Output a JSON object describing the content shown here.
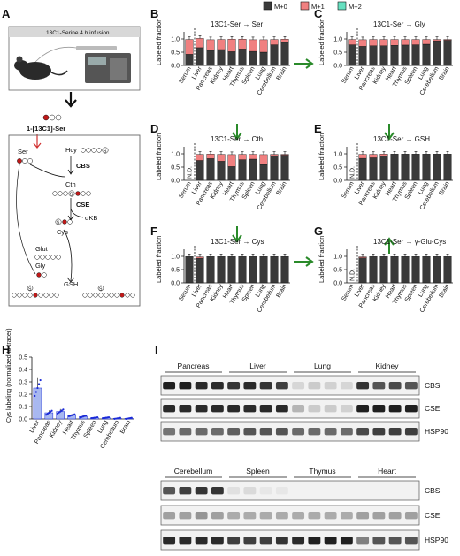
{
  "figure": {
    "panel_labels": [
      "A",
      "B",
      "C",
      "D",
      "E",
      "F",
      "G",
      "H",
      "I"
    ],
    "legend": [
      {
        "label": "M+0",
        "color": "#3a3a3a"
      },
      {
        "label": "M+1",
        "color": "#f08080"
      },
      {
        "label": "M+2",
        "color": "#66e0c0"
      }
    ],
    "colors": {
      "m0": "#3a3a3a",
      "m1": "#f08080",
      "m2": "#66e0c0",
      "arrow_green": "#2a8a2a",
      "arrow_red": "#d03030",
      "enzyme_blue": "#1a2a9a",
      "box_border": "#666666",
      "h_bar": "#a8b8f0",
      "h_point": "#1a2ad8"
    }
  },
  "panelA": {
    "infusion_label": "13C1-Serine 4 h infusion",
    "tracer_label": "1-[13C1]-Ser",
    "metabolites": {
      "ser": "Ser",
      "hcy": "Hcy",
      "cth": "Cth",
      "cys": "Cys",
      "akb": "αKB",
      "glut": "Glut",
      "gly": "Gly",
      "gsh": "GSH"
    },
    "enzymes": {
      "cbs": "CBS",
      "cse": "CSE"
    },
    "s_glyph": "S"
  },
  "chart_data": [
    {
      "panel": "B",
      "type": "bar",
      "stacked": true,
      "title": "13C1-Ser → Ser",
      "ylabel": "Labeled fraction",
      "ylim": [
        0,
        1.0
      ],
      "yticks": [
        0,
        0.5,
        1.0
      ],
      "categories": [
        "Serum",
        "Liver",
        "Pancreas",
        "Kidney",
        "Heart",
        "Thymus",
        "Spleen",
        "Lung",
        "Cerebellum",
        "Brain"
      ],
      "series": [
        {
          "name": "M+0",
          "values": [
            0.42,
            0.67,
            0.57,
            0.6,
            0.52,
            0.62,
            0.53,
            0.5,
            0.78,
            0.87
          ]
        },
        {
          "name": "M+1",
          "values": [
            0.56,
            0.35,
            0.4,
            0.38,
            0.47,
            0.37,
            0.44,
            0.47,
            0.2,
            0.12
          ]
        },
        {
          "name": "M+2",
          "values": [
            0,
            0,
            0,
            0,
            0,
            0,
            0,
            0,
            0,
            0
          ]
        }
      ],
      "not_detected": []
    },
    {
      "panel": "C",
      "type": "bar",
      "stacked": true,
      "title": "13C1-Ser → Gly",
      "ylabel": "Labeled fraction",
      "ylim": [
        0,
        1.0
      ],
      "yticks": [
        0,
        0.5,
        1.0
      ],
      "categories": [
        "Serum",
        "Liver",
        "Pancreas",
        "Kidney",
        "Heart",
        "Thymus",
        "Spleen",
        "Lung",
        "Cerebellum",
        "Brain"
      ],
      "series": [
        {
          "name": "M+0",
          "values": [
            0.78,
            0.72,
            0.74,
            0.74,
            0.76,
            0.77,
            0.78,
            0.8,
            0.93,
            0.95
          ]
        },
        {
          "name": "M+1",
          "values": [
            0.2,
            0.25,
            0.24,
            0.24,
            0.22,
            0.21,
            0.2,
            0.18,
            0.05,
            0.03
          ]
        },
        {
          "name": "M+2",
          "values": [
            0,
            0,
            0,
            0,
            0,
            0,
            0,
            0,
            0,
            0
          ]
        }
      ],
      "not_detected": []
    },
    {
      "panel": "D",
      "type": "bar",
      "stacked": true,
      "title": "13C1-Ser → Cth",
      "ylabel": "Labeled fraction",
      "ylim": [
        0,
        1.0
      ],
      "yticks": [
        0,
        0.5,
        1.0
      ],
      "categories": [
        "Serum",
        "Liver",
        "Pancreas",
        "Kidney",
        "Heart",
        "Thymus",
        "Spleen",
        "Lung",
        "Cerebellum",
        "Brain"
      ],
      "series": [
        {
          "name": "M+0",
          "values": [
            0,
            0.75,
            0.82,
            0.72,
            0.52,
            0.78,
            0.8,
            0.6,
            0.93,
            0.95
          ]
        },
        {
          "name": "M+1",
          "values": [
            0,
            0.23,
            0.17,
            0.26,
            0.45,
            0.2,
            0.18,
            0.37,
            0.05,
            0.03
          ]
        },
        {
          "name": "M+2",
          "values": [
            0,
            0,
            0,
            0,
            0,
            0,
            0,
            0,
            0,
            0
          ]
        }
      ],
      "not_detected": [
        "Serum"
      ],
      "nd_label": "N.D."
    },
    {
      "panel": "E",
      "type": "bar",
      "stacked": true,
      "title": "13C1-Ser → GSH",
      "ylabel": "Labeled fraction",
      "ylim": [
        0,
        1.0
      ],
      "yticks": [
        0,
        0.5,
        1.0
      ],
      "categories": [
        "Serum",
        "Liver",
        "Pancreas",
        "Kidney",
        "Heart",
        "Thymus",
        "Spleen",
        "Lung",
        "Cerebellum",
        "Brain"
      ],
      "series": [
        {
          "name": "M+0",
          "values": [
            0,
            0.83,
            0.85,
            0.92,
            0.99,
            0.99,
            0.99,
            0.99,
            0.99,
            0.99
          ]
        },
        {
          "name": "M+1",
          "values": [
            0,
            0.15,
            0.13,
            0.07,
            0,
            0,
            0,
            0,
            0,
            0
          ]
        },
        {
          "name": "M+2",
          "values": [
            0,
            0,
            0,
            0,
            0,
            0,
            0,
            0,
            0,
            0
          ]
        }
      ],
      "not_detected": [
        "Serum"
      ],
      "nd_label": "N.D."
    },
    {
      "panel": "F",
      "type": "bar",
      "stacked": true,
      "title": "13C1-Ser → Cys",
      "ylabel": "Labeled fraction",
      "ylim": [
        0,
        1.0
      ],
      "yticks": [
        0,
        0.5,
        1.0
      ],
      "categories": [
        "Serum",
        "Liver",
        "Pancreas",
        "Kidney",
        "Heart",
        "Thymus",
        "Spleen",
        "Lung",
        "Cerebellum",
        "Brain"
      ],
      "series": [
        {
          "name": "M+0",
          "values": [
            0.99,
            0.93,
            0.99,
            0.99,
            0.99,
            0.99,
            0.99,
            0.99,
            0.99,
            0.99
          ]
        },
        {
          "name": "M+1",
          "values": [
            0,
            0.05,
            0,
            0,
            0,
            0,
            0,
            0,
            0,
            0
          ]
        },
        {
          "name": "M+2",
          "values": [
            0,
            0,
            0,
            0,
            0,
            0,
            0,
            0,
            0,
            0
          ]
        }
      ],
      "not_detected": []
    },
    {
      "panel": "G",
      "type": "bar",
      "stacked": true,
      "title": "13C1-Ser → γ-Glu-Cys",
      "ylabel": "Labeled fraction",
      "ylim": [
        0,
        1.0
      ],
      "yticks": [
        0,
        0.5,
        1.0
      ],
      "categories": [
        "Serum",
        "Liver",
        "Pancreas",
        "Kidney",
        "Heart",
        "Thymus",
        "Spleen",
        "Lung",
        "Cerebellum",
        "Brain"
      ],
      "series": [
        {
          "name": "M+0",
          "values": [
            0,
            0.94,
            0.99,
            0.99,
            0.99,
            0.99,
            0.99,
            0.99,
            0.99,
            0.99
          ]
        },
        {
          "name": "M+1",
          "values": [
            0,
            0.04,
            0,
            0,
            0,
            0,
            0,
            0,
            0,
            0
          ]
        },
        {
          "name": "M+2",
          "values": [
            0,
            0,
            0,
            0,
            0,
            0,
            0,
            0,
            0,
            0
          ]
        }
      ],
      "not_detected": [
        "Serum"
      ],
      "nd_label": "N.D."
    },
    {
      "panel": "H",
      "type": "bar",
      "ylabel": "Cys labeling (normalized to tracer)",
      "ylim": [
        0,
        0.5
      ],
      "yticks": [
        0.0,
        0.1,
        0.2,
        0.3,
        0.4,
        0.5
      ],
      "categories": [
        "Liver",
        "Pancreas",
        "Kidney",
        "Heart",
        "Thymus",
        "Spleen",
        "Lung",
        "Cerebellum",
        "Brain"
      ],
      "values": [
        0.25,
        0.05,
        0.06,
        0.03,
        0.02,
        0.01,
        0.01,
        0.005,
        0.005
      ],
      "errors": [
        0.08,
        0.02,
        0.02,
        0.01,
        0.01,
        0.005,
        0.005,
        0.005,
        0.005
      ]
    }
  ],
  "panelI": {
    "top_groups": [
      "Pancreas",
      "Liver",
      "Lung",
      "Kidney"
    ],
    "bottom_groups": [
      "Cerebellum",
      "Spleen",
      "Thymus",
      "Heart"
    ],
    "rows": [
      "CBS",
      "CSE",
      "HSP90"
    ],
    "top_intensity": {
      "CBS": [
        [
          0.95,
          0.95,
          0.9,
          0.9
        ],
        [
          0.85,
          0.9,
          0.85,
          0.8
        ],
        [
          0.1,
          0.15,
          0.12,
          0.1
        ],
        [
          0.85,
          0.7,
          0.75,
          0.7
        ]
      ],
      "CSE": [
        [
          0.9,
          0.9,
          0.9,
          0.9
        ],
        [
          0.9,
          0.9,
          0.9,
          0.9
        ],
        [
          0.25,
          0.15,
          0.15,
          0.12
        ],
        [
          0.95,
          0.95,
          0.95,
          0.95
        ]
      ],
      "HSP90": [
        [
          0.55,
          0.6,
          0.6,
          0.6
        ],
        [
          0.65,
          0.7,
          0.7,
          0.7
        ],
        [
          0.6,
          0.6,
          0.6,
          0.6
        ],
        [
          0.75,
          0.8,
          0.8,
          0.8
        ]
      ]
    },
    "bottom_intensity": {
      "CBS": [
        [
          0.7,
          0.8,
          0.85,
          0.85
        ],
        [
          0.05,
          0.08,
          0.02,
          0.02
        ],
        [
          0,
          0,
          0,
          0
        ],
        [
          0,
          0,
          0,
          0
        ]
      ],
      "CSE": [
        [
          0.35,
          0.35,
          0.4,
          0.35
        ],
        [
          0.3,
          0.3,
          0.3,
          0.3
        ],
        [
          0.3,
          0.3,
          0.3,
          0.3
        ],
        [
          0.35,
          0.35,
          0.35,
          0.35
        ]
      ],
      "HSP90": [
        [
          0.9,
          0.9,
          0.9,
          0.9
        ],
        [
          0.8,
          0.8,
          0.8,
          0.85
        ],
        [
          0.9,
          0.95,
          0.95,
          0.95
        ],
        [
          0.5,
          0.7,
          0.7,
          0.7
        ]
      ]
    }
  }
}
